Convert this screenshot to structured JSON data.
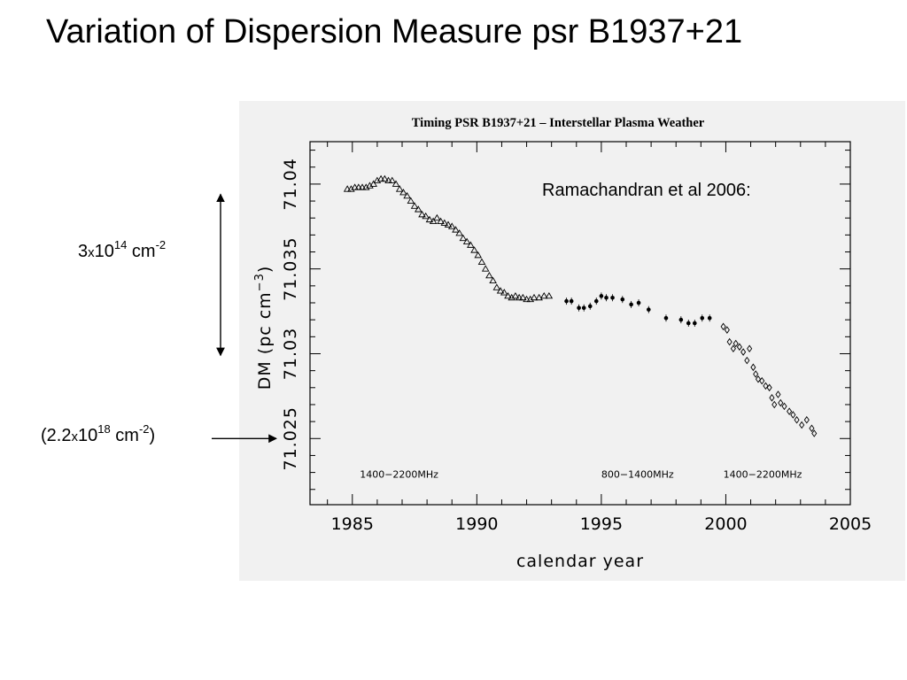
{
  "slide": {
    "title": "Variation of Dispersion Measure psr B1937+21",
    "annotation_range": {
      "base": "3",
      "times": "x",
      "exp_base": "10",
      "exponent": "14",
      "unit": "cm",
      "unit_exponent": "-2"
    },
    "annotation_arrow": {
      "open": "(",
      "base": "2.2",
      "times": "x",
      "exp_base": "10",
      "exponent": "18",
      "unit": "cm",
      "unit_exponent": "-2",
      "close": ")"
    },
    "range_arrow_dm": [
      71.0299,
      71.0394
    ],
    "pointer_arrow_dm": 71.025
  },
  "chart_data": {
    "type": "scatter",
    "title": "Timing PSR B1937+21 – Interstellar Plasma Weather",
    "xlabel": "calendar year",
    "ylabel": "DM (pc cm⁻³)",
    "ylabel_parts": {
      "main": "DM (pc cm",
      "sup": "−3",
      "close": ")"
    },
    "citation": "Ramachandran et al 2006:",
    "xlim": [
      1983.3,
      2005
    ],
    "ylim": [
      71.0211,
      71.0425
    ],
    "x_ticks": [
      1985,
      1990,
      1995,
      2000,
      2005
    ],
    "x_tick_labels": [
      "1985",
      "1990",
      "1995",
      "2000",
      "2005"
    ],
    "y_ticks": [
      71.025,
      71.03,
      71.035,
      71.04
    ],
    "y_tick_labels": [
      "71.025",
      "71.03",
      "71.035",
      "71.04"
    ],
    "x_minor_step": 1,
    "y_minor_step": 0.001,
    "grid": false,
    "band_labels": [
      {
        "text": "1400−2200MHz",
        "x": 1985.3
      },
      {
        "text": "800−1400MHz",
        "x": 1995.0
      },
      {
        "text": "1400−2200MHz",
        "x": 1999.9
      }
    ],
    "band_label_y": 71.0227,
    "series": [
      {
        "marker": "triangle",
        "points": [
          [
            1984.8,
            71.0397
          ],
          [
            1984.95,
            71.0397
          ],
          [
            1985.1,
            71.0398
          ],
          [
            1985.25,
            71.0398
          ],
          [
            1985.4,
            71.0398
          ],
          [
            1985.55,
            71.0398
          ],
          [
            1985.7,
            71.0399
          ],
          [
            1985.85,
            71.04
          ],
          [
            1986.0,
            71.0402
          ],
          [
            1986.15,
            71.0403
          ],
          [
            1986.3,
            71.0403
          ],
          [
            1986.45,
            71.0402
          ],
          [
            1986.6,
            71.0402
          ],
          [
            1986.75,
            71.04
          ],
          [
            1986.9,
            71.0397
          ],
          [
            1987.05,
            71.0395
          ],
          [
            1987.2,
            71.0393
          ],
          [
            1987.35,
            71.039
          ],
          [
            1987.5,
            71.0387
          ],
          [
            1987.65,
            71.0385
          ],
          [
            1987.8,
            71.0382
          ],
          [
            1987.95,
            71.0381
          ],
          [
            1988.1,
            71.0379
          ],
          [
            1988.25,
            71.0378
          ],
          [
            1988.4,
            71.038
          ],
          [
            1988.55,
            71.0378
          ],
          [
            1988.7,
            71.0377
          ],
          [
            1988.85,
            71.0376
          ],
          [
            1989.0,
            71.0375
          ],
          [
            1989.15,
            71.0373
          ],
          [
            1989.3,
            71.0371
          ],
          [
            1989.45,
            71.0368
          ],
          [
            1989.6,
            71.0366
          ],
          [
            1989.75,
            71.0364
          ],
          [
            1989.9,
            71.0361
          ],
          [
            1990.05,
            71.0358
          ],
          [
            1990.2,
            71.0354
          ],
          [
            1990.35,
            71.035
          ],
          [
            1990.5,
            71.0346
          ],
          [
            1990.65,
            71.0343
          ],
          [
            1990.8,
            71.0339
          ],
          [
            1990.95,
            71.0337
          ],
          [
            1991.1,
            71.0336
          ],
          [
            1991.25,
            71.0334
          ],
          [
            1991.4,
            71.0333
          ],
          [
            1991.55,
            71.0334
          ],
          [
            1991.7,
            71.0333
          ],
          [
            1991.85,
            71.0333
          ],
          [
            1992.0,
            71.0332
          ],
          [
            1992.15,
            71.0332
          ],
          [
            1992.3,
            71.0333
          ],
          [
            1992.5,
            71.0333
          ],
          [
            1992.7,
            71.0334
          ],
          [
            1992.9,
            71.0334
          ]
        ]
      },
      {
        "marker": "dot",
        "points": [
          [
            1993.6,
            71.0331
          ],
          [
            1993.8,
            71.0331
          ],
          [
            1994.1,
            71.0327
          ],
          [
            1994.3,
            71.0327
          ],
          [
            1994.55,
            71.0328
          ],
          [
            1994.8,
            71.0331
          ],
          [
            1995.0,
            71.0334
          ],
          [
            1995.2,
            71.0333
          ],
          [
            1995.45,
            71.0333
          ],
          [
            1995.85,
            71.0332
          ],
          [
            1996.2,
            71.0329
          ],
          [
            1996.5,
            71.033
          ],
          [
            1996.9,
            71.0326
          ],
          [
            1997.6,
            71.0321
          ],
          [
            1998.2,
            71.032
          ],
          [
            1998.5,
            71.0318
          ],
          [
            1998.75,
            71.0318
          ],
          [
            1999.05,
            71.0321
          ],
          [
            1999.35,
            71.0321
          ]
        ]
      },
      {
        "marker": "diamond",
        "points": [
          [
            1999.9,
            71.0316
          ],
          [
            2000.05,
            71.0314
          ],
          [
            2000.15,
            71.0307
          ],
          [
            2000.3,
            71.0303
          ],
          [
            2000.4,
            71.0306
          ],
          [
            2000.55,
            71.0304
          ],
          [
            2000.7,
            71.0301
          ],
          [
            2000.85,
            71.0296
          ],
          [
            2000.95,
            71.0303
          ],
          [
            2001.1,
            71.0292
          ],
          [
            2001.2,
            71.0288
          ],
          [
            2001.3,
            71.0285
          ],
          [
            2001.45,
            71.0284
          ],
          [
            2001.6,
            71.0281
          ],
          [
            2001.75,
            71.028
          ],
          [
            2001.85,
            71.0274
          ],
          [
            2001.95,
            71.027
          ],
          [
            2002.1,
            71.0276
          ],
          [
            2002.2,
            71.0271
          ],
          [
            2002.35,
            71.0269
          ],
          [
            2002.55,
            71.0266
          ],
          [
            2002.7,
            71.0264
          ],
          [
            2002.85,
            71.0261
          ],
          [
            2003.05,
            71.0258
          ],
          [
            2003.25,
            71.0261
          ],
          [
            2003.45,
            71.0256
          ],
          [
            2003.55,
            71.0253
          ]
        ]
      }
    ]
  }
}
